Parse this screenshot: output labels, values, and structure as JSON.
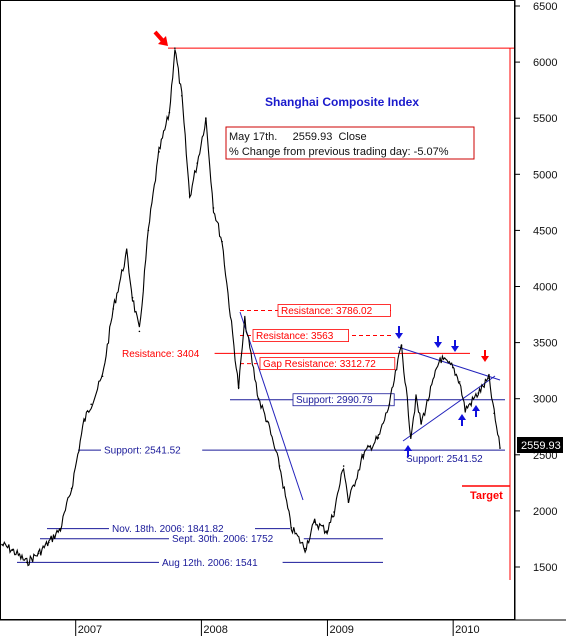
{
  "chart_data": {
    "type": "line",
    "title": "Shanghai Composite Index",
    "subtitle": "",
    "xlabel": "",
    "ylabel": "",
    "ylim": [
      1200,
      6500
    ],
    "x_tick_labels": [
      "2007",
      "2008",
      "2009",
      "2010"
    ],
    "y_ticks": [
      1500,
      2000,
      2500,
      3000,
      3500,
      4000,
      4500,
      5000,
      5500,
      6000,
      6500
    ],
    "grid": false,
    "price_tag": "2559.93",
    "info_box": {
      "line1": "May 17th.     2559.93  Close",
      "line2": "% Change from previous trading day: -5.07%"
    },
    "series": [
      {
        "values": [
          {
            "x": "2006-06-01",
            "y": 1700
          },
          {
            "x": "2006-07-01",
            "y": 1650
          },
          {
            "x": "2006-08-12",
            "y": 1541
          },
          {
            "x": "2006-09-15",
            "y": 1620
          },
          {
            "x": "2006-10-15",
            "y": 1720
          },
          {
            "x": "2006-11-18",
            "y": 1842
          },
          {
            "x": "2006-12-20",
            "y": 2200
          },
          {
            "x": "2007-01-25",
            "y": 2800
          },
          {
            "x": "2007-02-15",
            "y": 2950
          },
          {
            "x": "2007-03-20",
            "y": 3200
          },
          {
            "x": "2007-04-20",
            "y": 3800
          },
          {
            "x": "2007-05-29",
            "y": 4300
          },
          {
            "x": "2007-06-15",
            "y": 3900
          },
          {
            "x": "2007-07-05",
            "y": 3600
          },
          {
            "x": "2007-07-31",
            "y": 4500
          },
          {
            "x": "2007-08-31",
            "y": 5200
          },
          {
            "x": "2007-09-30",
            "y": 5550
          },
          {
            "x": "2007-10-16",
            "y": 6124
          },
          {
            "x": "2007-11-05",
            "y": 5700
          },
          {
            "x": "2007-11-28",
            "y": 4800
          },
          {
            "x": "2007-12-20",
            "y": 5100
          },
          {
            "x": "2008-01-14",
            "y": 5500
          },
          {
            "x": "2008-02-05",
            "y": 4700
          },
          {
            "x": "2008-03-01",
            "y": 4400
          },
          {
            "x": "2008-04-18",
            "y": 3100
          },
          {
            "x": "2008-05-06",
            "y": 3700
          },
          {
            "x": "2008-06-15",
            "y": 3000
          },
          {
            "x": "2008-07-10",
            "y": 2800
          },
          {
            "x": "2008-08-15",
            "y": 2400
          },
          {
            "x": "2008-09-18",
            "y": 1850
          },
          {
            "x": "2008-10-28",
            "y": 1664
          },
          {
            "x": "2008-11-25",
            "y": 1900
          },
          {
            "x": "2008-12-31",
            "y": 1820
          },
          {
            "x": "2009-01-20",
            "y": 1990
          },
          {
            "x": "2009-02-17",
            "y": 2400
          },
          {
            "x": "2009-03-03",
            "y": 2080
          },
          {
            "x": "2009-04-15",
            "y": 2500
          },
          {
            "x": "2009-05-29",
            "y": 2650
          },
          {
            "x": "2009-06-30",
            "y": 2950
          },
          {
            "x": "2009-08-04",
            "y": 3478
          },
          {
            "x": "2009-08-31",
            "y": 2670
          },
          {
            "x": "2009-09-15",
            "y": 3000
          },
          {
            "x": "2009-09-30",
            "y": 2780
          },
          {
            "x": "2009-11-24",
            "y": 3361
          },
          {
            "x": "2009-12-31",
            "y": 3277
          },
          {
            "x": "2010-01-20",
            "y": 3150
          },
          {
            "x": "2010-02-05",
            "y": 2900
          },
          {
            "x": "2010-03-15",
            "y": 3050
          },
          {
            "x": "2010-04-15",
            "y": 3180
          },
          {
            "x": "2010-04-30",
            "y": 2870
          },
          {
            "x": "2010-05-17",
            "y": 2560
          }
        ]
      }
    ],
    "horizontal_levels": [
      {
        "label": "Resistance: 3786.02",
        "value": 3786.02,
        "color": "#ff0000",
        "style": "dashed"
      },
      {
        "label": "Resistance: 3563",
        "value": 3563,
        "color": "#ff0000",
        "style": "dashed"
      },
      {
        "label": "Resistance: 3404",
        "value": 3404,
        "color": "#ff0000",
        "style": "solid"
      },
      {
        "label": "Gap Resistance: 3312.72",
        "value": 3312.72,
        "color": "#ff0000",
        "style": "dashed"
      },
      {
        "label": "Support:  2990.79",
        "value": 2990.79,
        "color": "#1a1a99",
        "style": "solid"
      },
      {
        "label": "Support:  2541.52",
        "value": 2541.52,
        "color": "#1a1a99",
        "style": "solid"
      },
      {
        "label": "Support: 2541.52",
        "value": 2541.52,
        "color": "#1a1a99",
        "style": "label"
      },
      {
        "label": "Nov. 18th. 2006:  1841.82",
        "value": 1841.82,
        "color": "#1a1a99",
        "style": "solid"
      },
      {
        "label": "Sept. 30th. 2006:  1752",
        "value": 1752,
        "color": "#1a1a99",
        "style": "solid"
      },
      {
        "label": "Aug 12th. 2006:  1541",
        "value": 1541,
        "color": "#1a1a99",
        "style": "solid"
      },
      {
        "label": "",
        "value": 6124,
        "color": "#ff0000",
        "style": "solid"
      }
    ],
    "target_label": "Target",
    "colors": {
      "price": "#000000",
      "resistance": "#ff0000",
      "support": "#1a1a99",
      "title": "#1a1acc",
      "arrow_down_red": "#ff0000",
      "arrow_blue": "#1010dd",
      "trendline": "#2222bb"
    }
  }
}
